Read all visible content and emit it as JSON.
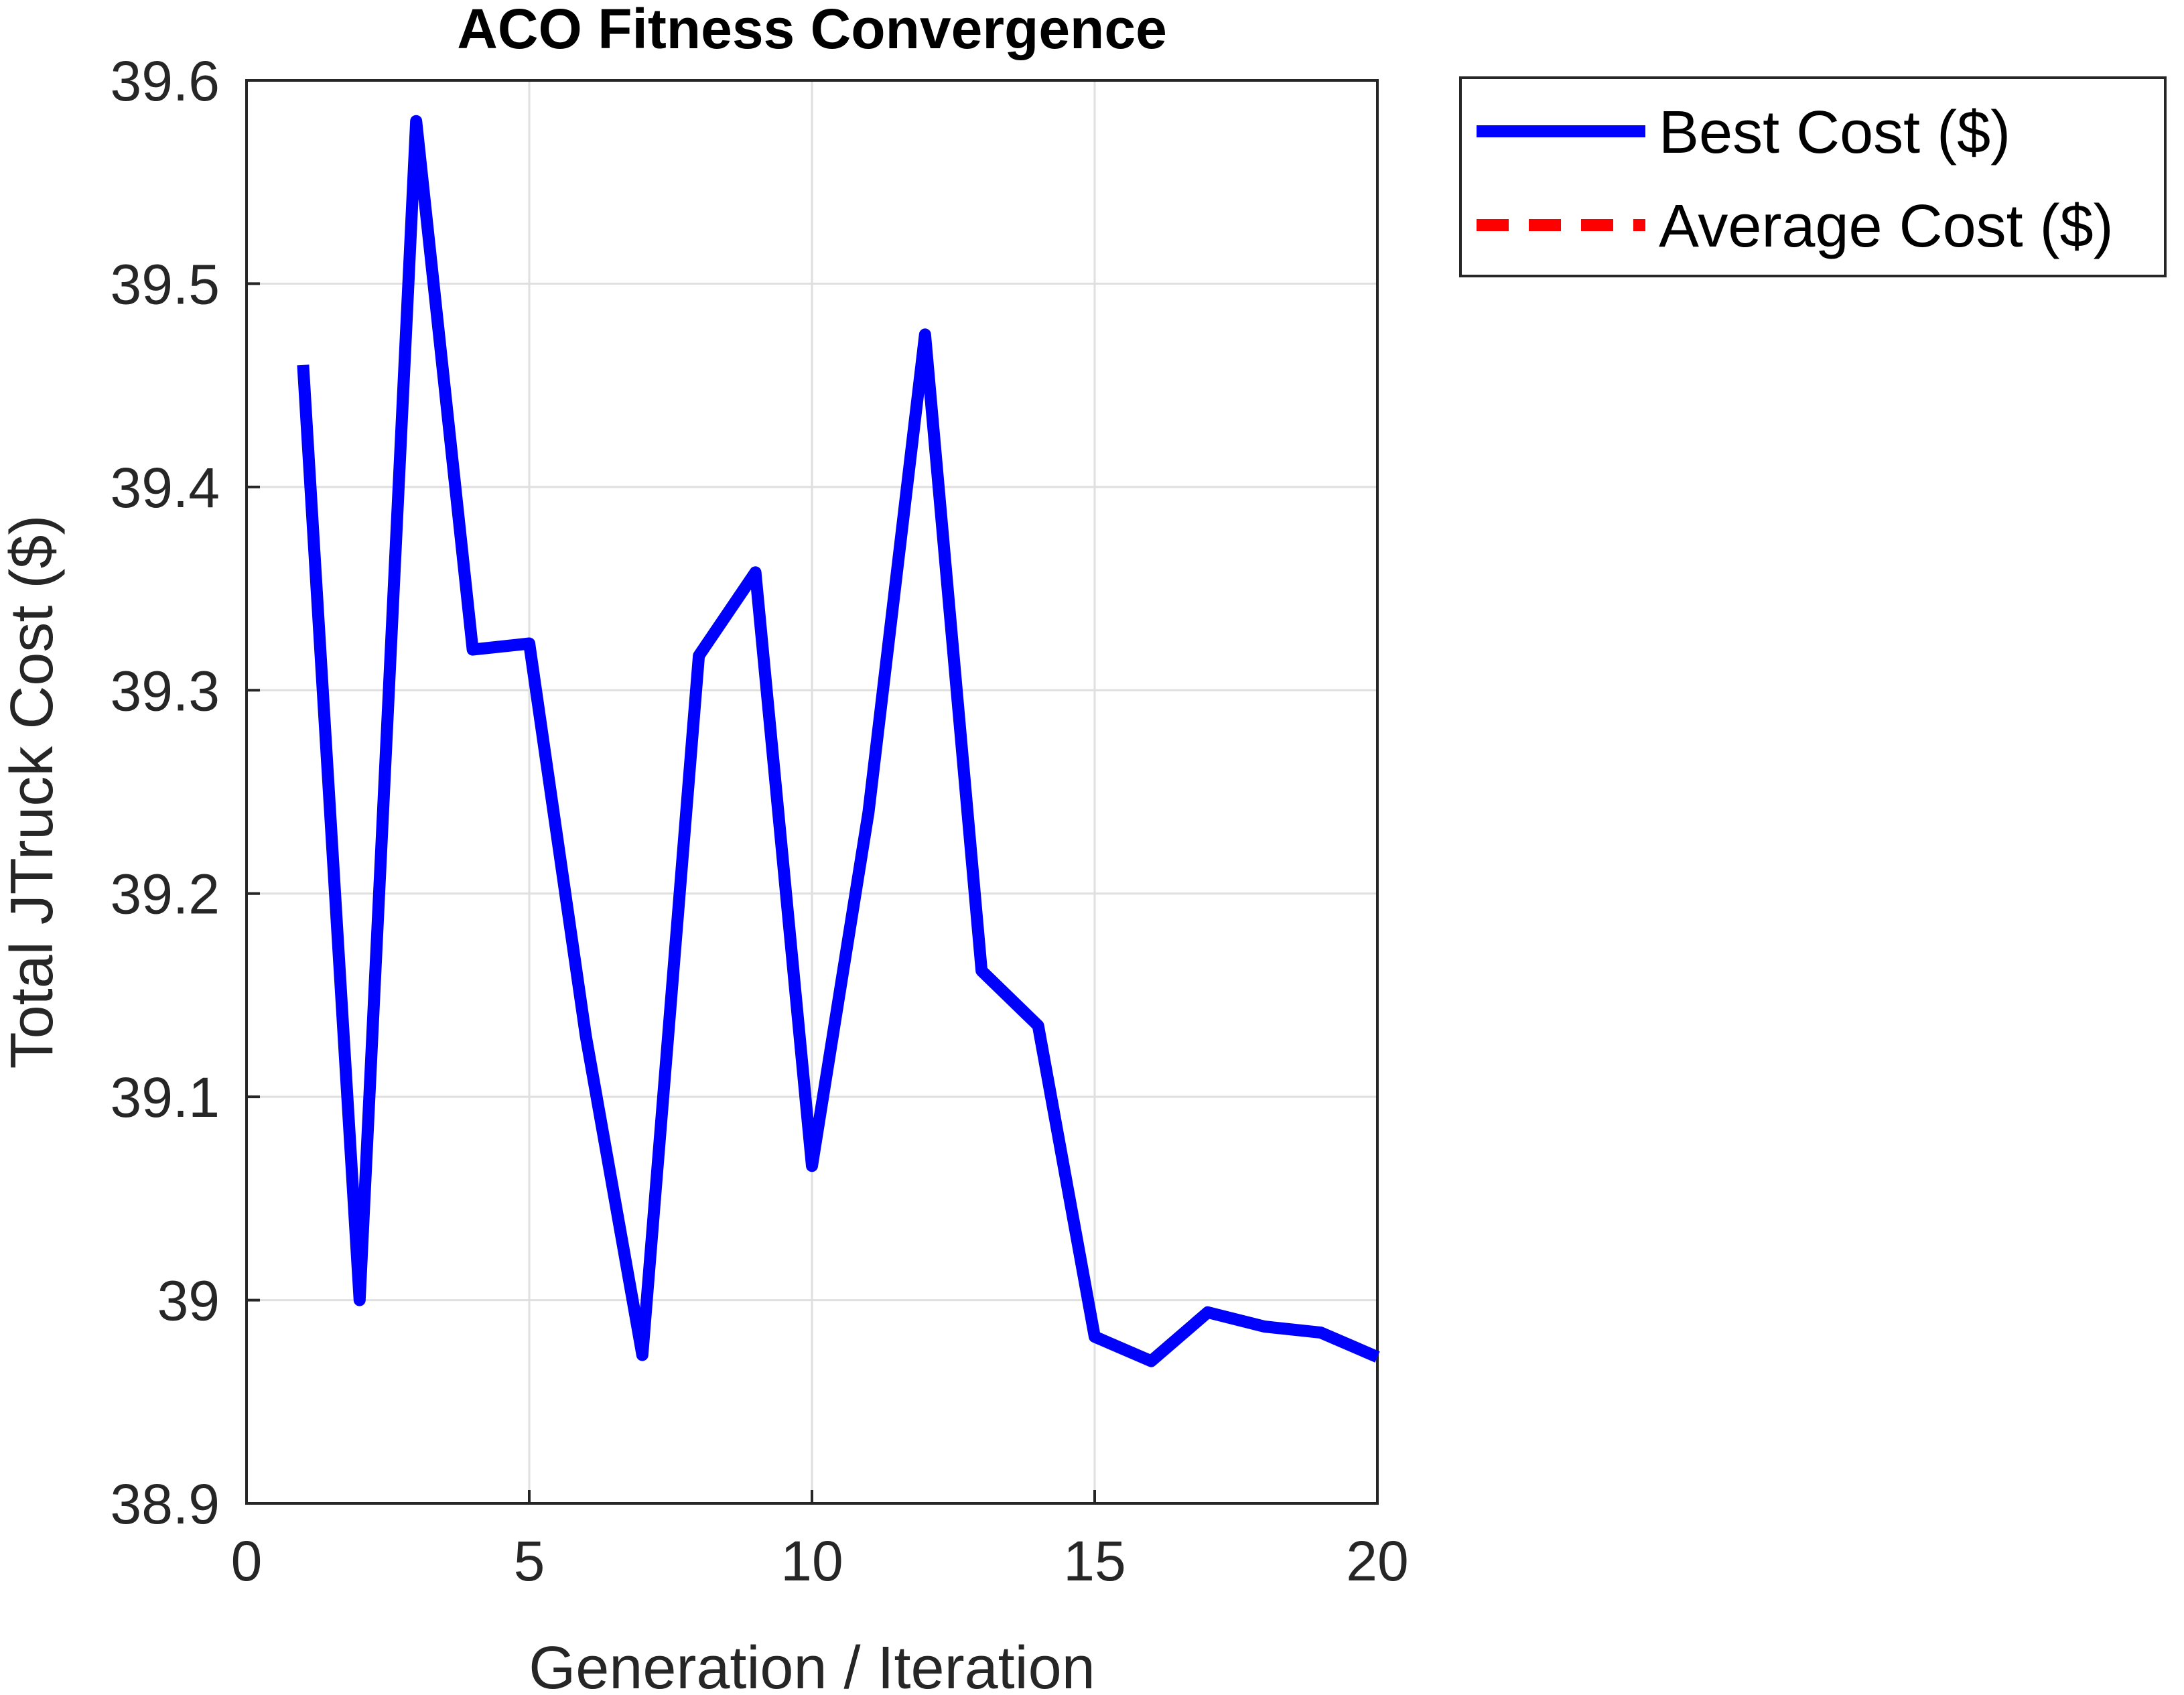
{
  "chart_data": {
    "type": "line",
    "title": "ACO Fitness Convergence",
    "xlabel": "Generation / Iteration",
    "ylabel": "Total JTruck Cost ($)",
    "xlim": [
      0,
      20
    ],
    "ylim": [
      38.9,
      39.6
    ],
    "xticks": [
      0,
      5,
      10,
      15,
      20
    ],
    "xtick_labels": [
      "0",
      "5",
      "10",
      "15",
      "20"
    ],
    "yticks": [
      38.9,
      39.0,
      39.1,
      39.2,
      39.3,
      39.4,
      39.5,
      39.6
    ],
    "ytick_labels": [
      "38.9",
      "39",
      "39.1",
      "39.2",
      "39.3",
      "39.4",
      "39.5",
      "39.6"
    ],
    "grid": true,
    "legend_position": "outside-top-right",
    "series": [
      {
        "name": "Best Cost ($)",
        "color": "#0000ff",
        "style": "solid",
        "x": [
          1,
          2,
          3,
          4,
          5,
          6,
          7,
          8,
          9,
          10,
          11,
          12,
          13,
          14,
          15,
          16,
          17,
          18,
          19,
          20
        ],
        "y": [
          39.46,
          39.0,
          39.58,
          39.32,
          39.323,
          39.13,
          38.973,
          39.317,
          39.358,
          39.066,
          39.24,
          39.475,
          39.162,
          39.135,
          38.982,
          38.97,
          38.994,
          38.987,
          38.984,
          38.972
        ]
      },
      {
        "name": "Average Cost ($)",
        "color": "#ff0000",
        "style": "dashed",
        "x": [],
        "y": []
      }
    ]
  }
}
